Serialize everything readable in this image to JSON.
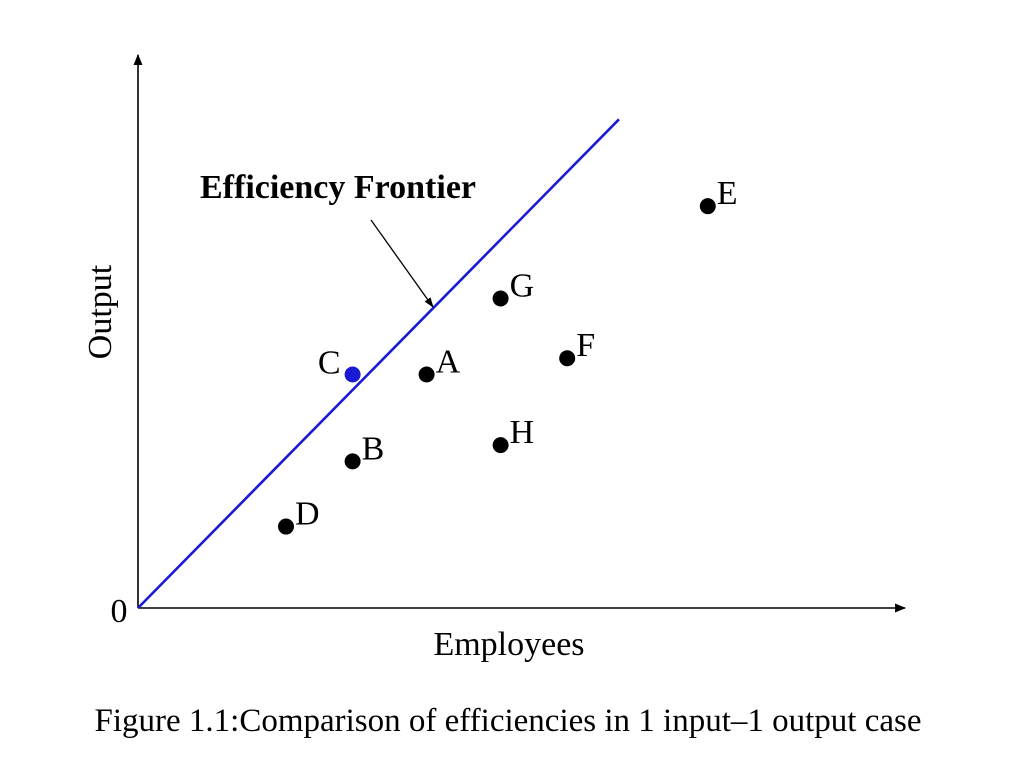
{
  "chart_data": {
    "type": "scatter",
    "xlabel": "Employees",
    "ylabel": "Output",
    "origin_label": "0",
    "xlim": [
      0,
      10
    ],
    "ylim": [
      0,
      10
    ],
    "frontier": {
      "label": "Efficiency Frontier",
      "color": "#1a1ad6",
      "label_color": "#e80000",
      "x": [
        0,
        6.5
      ],
      "y": [
        0,
        9.0
      ]
    },
    "points": [
      {
        "label": "A",
        "x": 3.9,
        "y": 4.3,
        "color": "#000000"
      },
      {
        "label": "B",
        "x": 2.9,
        "y": 2.7,
        "color": "#000000"
      },
      {
        "label": "C",
        "x": 2.9,
        "y": 4.3,
        "color": "#1a1ad6"
      },
      {
        "label": "D",
        "x": 2.0,
        "y": 1.5,
        "color": "#000000"
      },
      {
        "label": "E",
        "x": 7.7,
        "y": 7.4,
        "color": "#000000"
      },
      {
        "label": "F",
        "x": 5.8,
        "y": 4.6,
        "color": "#000000"
      },
      {
        "label": "G",
        "x": 4.9,
        "y": 5.7,
        "color": "#000000"
      },
      {
        "label": "H",
        "x": 4.9,
        "y": 3.0,
        "color": "#000000"
      }
    ]
  },
  "caption": "Figure 1.1:Comparison of efficiencies in 1 input–1 output case"
}
